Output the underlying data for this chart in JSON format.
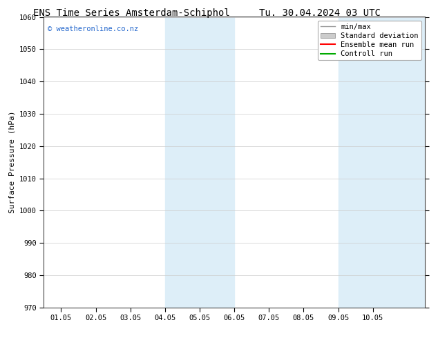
{
  "title_left": "ENS Time Series Amsterdam-Schiphol",
  "title_right": "Tu. 30.04.2024 03 UTC",
  "ylabel": "Surface Pressure (hPa)",
  "ylim": [
    970,
    1060
  ],
  "yticks": [
    970,
    980,
    990,
    1000,
    1010,
    1020,
    1030,
    1040,
    1050,
    1060
  ],
  "xlim": [
    -0.5,
    10.5
  ],
  "xtick_labels": [
    "01.05",
    "02.05",
    "03.05",
    "04.05",
    "05.05",
    "06.05",
    "07.05",
    "08.05",
    "09.05",
    "10.05"
  ],
  "xtick_positions": [
    0,
    1,
    2,
    3,
    4,
    5,
    6,
    7,
    8,
    9
  ],
  "shaded_bands": [
    {
      "x_start": 3.0,
      "x_end": 5.0,
      "color": "#ddeef8"
    },
    {
      "x_start": 8.0,
      "x_end": 10.5,
      "color": "#ddeef8"
    }
  ],
  "watermark_text": "© weatheronline.co.nz",
  "watermark_color": "#2266cc",
  "background_color": "#ffffff",
  "legend_items": [
    {
      "label": "min/max",
      "color": "#999999",
      "linestyle": "-",
      "linewidth": 1.0,
      "type": "line"
    },
    {
      "label": "Standard deviation",
      "color": "#cccccc",
      "type": "patch"
    },
    {
      "label": "Ensemble mean run",
      "color": "#ff0000",
      "linestyle": "-",
      "linewidth": 1.5,
      "type": "line"
    },
    {
      "label": "Controll run",
      "color": "#00aa00",
      "linestyle": "-",
      "linewidth": 1.5,
      "type": "line"
    }
  ],
  "title_fontsize": 10,
  "axis_fontsize": 8,
  "tick_fontsize": 7.5,
  "legend_fontsize": 7.5,
  "watermark_fontsize": 7.5,
  "grid_color": "#cccccc",
  "grid_linewidth": 0.5
}
